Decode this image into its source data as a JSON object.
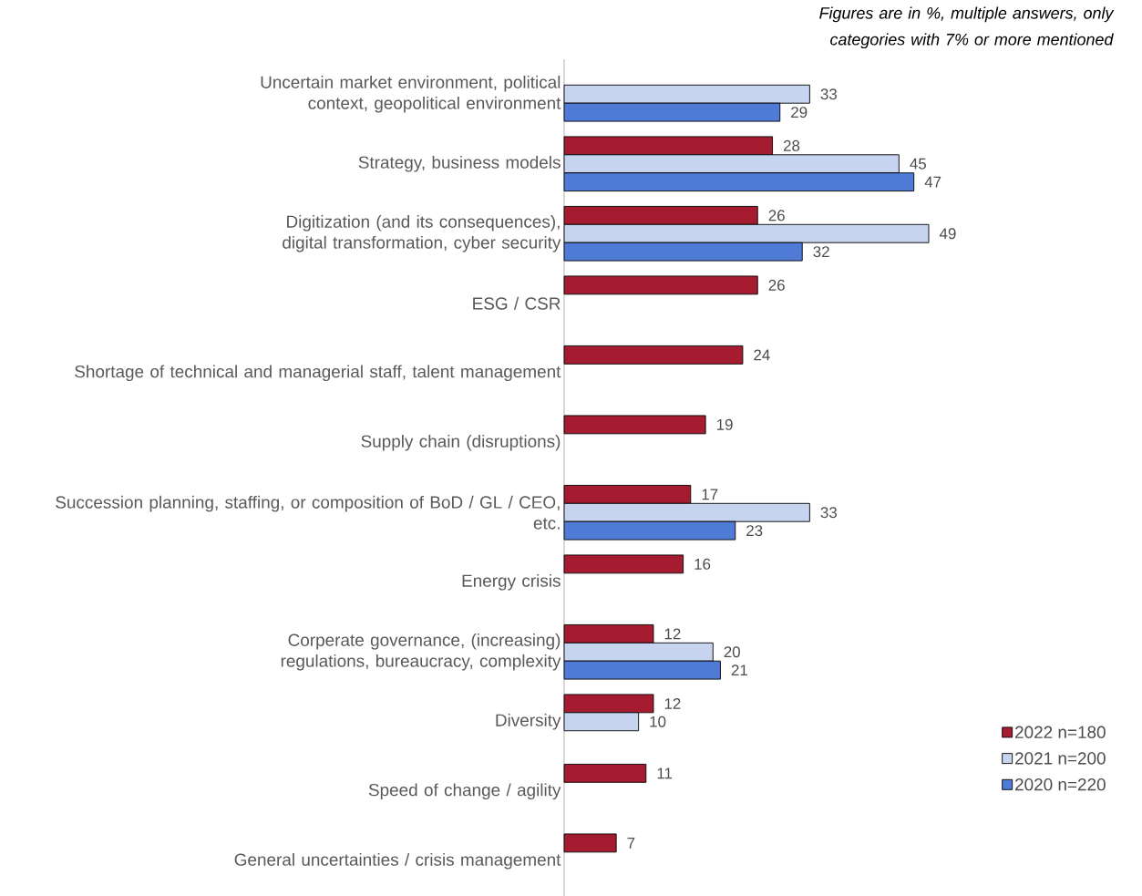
{
  "chart_data": {
    "type": "bar",
    "orientation": "horizontal",
    "categories": [
      "Uncertain market environment, political context, geopolitical environment",
      "Strategy, business models",
      "Digitization (and its consequences), digital transformation, cyber security",
      "ESG / CSR",
      "Shortage of technical and managerial staff, talent management",
      "Supply chain (disruptions)",
      "Succession planning, staffing, or composition of BoD / GL / CEO, etc.",
      "Energy crisis",
      "Corperate governance, (increasing) regulations, bureaucracy, complexity",
      "Diversity",
      "Speed of change / agility",
      "General uncertainties / crisis management"
    ],
    "series": [
      {
        "name": "2022 n=180",
        "color": "#a51c30",
        "values": [
          null,
          28,
          26,
          26,
          24,
          19,
          17,
          16,
          12,
          12,
          11,
          7
        ]
      },
      {
        "name": "2021 n=200",
        "color": "#c6d4ef",
        "values": [
          33,
          45,
          49,
          null,
          null,
          null,
          33,
          null,
          20,
          10,
          null,
          null
        ]
      },
      {
        "name": "2020 n=220",
        "color": "#4f7bd6",
        "values": [
          29,
          47,
          32,
          null,
          null,
          null,
          23,
          null,
          21,
          null,
          null,
          null
        ]
      }
    ],
    "data_labels": true,
    "legend": "bottom right",
    "annotations": [
      "Figures are in %, multiple answers, only categories with 7% or more mentioned"
    ]
  }
}
